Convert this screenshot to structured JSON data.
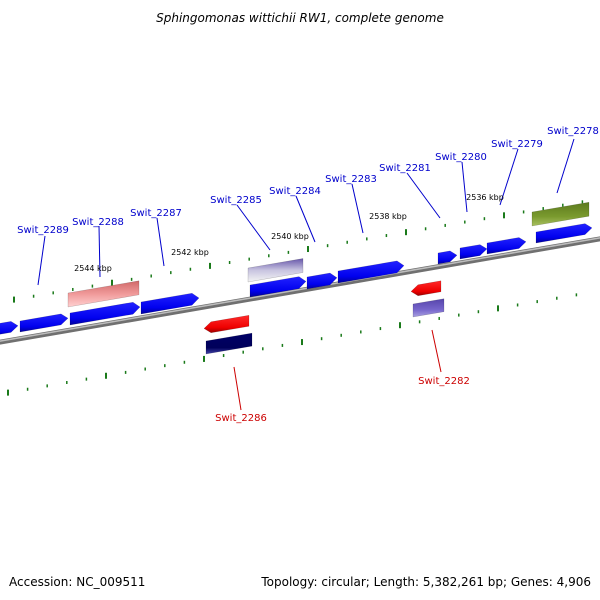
{
  "title": "Sphingomonas wittichii RW1, complete genome",
  "footer": {
    "accession": "Accession: NC_009511",
    "topology": "Topology: circular; Length: 5,382,261 bp; Genes: 4,906"
  },
  "colors": {
    "forward_label": "#0000cc",
    "reverse_label": "#cc0000",
    "backbone": "#888888",
    "ticks": "#1a7a1a",
    "leader": "#0000cc"
  },
  "kbp_labels": [
    "2544 kbp",
    "2542 kbp",
    "2540 kbp",
    "2538 kbp",
    "2536 kbp"
  ],
  "forward_genes": [
    "Swit_2289",
    "Swit_2288",
    "Swit_2287",
    "Swit_2285",
    "Swit_2284",
    "Swit_2283",
    "Swit_2281",
    "Swit_2280",
    "Swit_2279",
    "Swit_2278"
  ],
  "reverse_genes": [
    "Swit_2286",
    "Swit_2282"
  ]
}
